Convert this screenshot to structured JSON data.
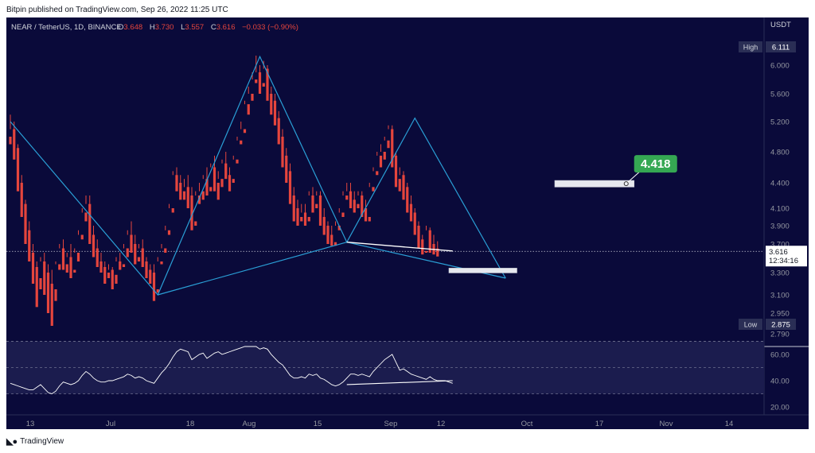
{
  "header": {
    "published": "Bitpin published on TradingView.com, Sep 26, 2022 11:25 UTC"
  },
  "symbol_bar": {
    "title": "NEAR / TetherUS, 1D, BINANCE",
    "o_label": "O",
    "o_value": "3.648",
    "h_label": "H",
    "h_value": "3.730",
    "l_label": "L",
    "l_value": "3.557",
    "c_label": "C",
    "c_value": "3.616",
    "change": "−0.033 (−0.90%)"
  },
  "footer": {
    "logo_text": "TradingView"
  },
  "colors": {
    "background": "#0a0a3a",
    "up": "#26c281",
    "down": "#e5453d",
    "pattern": "#2a9fd6",
    "white": "#ffffff",
    "label_green": "#35a853"
  },
  "chart_data": [
    {
      "type": "candlestick",
      "currency": "USDT",
      "y_ticks": [
        "6.000",
        "5.600",
        "5.200",
        "4.800",
        "4.400",
        "4.100",
        "3.900",
        "3.700",
        "3.500",
        "3.300",
        "3.100",
        "2.950",
        "2.790"
      ],
      "ylim": [
        2.79,
        6.111
      ],
      "x_ticks": [
        "13",
        "Jul",
        "18",
        "Aug",
        "15",
        "Sep",
        "12",
        "Oct",
        "17",
        "Nov",
        "14"
      ],
      "high_label": "High",
      "high_value": "6.111",
      "low_label": "Low",
      "low_value": "2.875",
      "last_price": "3.616",
      "countdown": "12:34:16",
      "target_label": "4.418",
      "candles": [
        [
          5.0,
          5.3,
          5.1,
          4.9
        ],
        [
          5.1,
          5.2,
          4.85,
          4.7
        ],
        [
          4.85,
          4.9,
          4.4,
          4.3
        ],
        [
          4.4,
          4.5,
          4.15,
          4.0
        ],
        [
          4.15,
          4.2,
          3.85,
          3.7
        ],
        [
          3.85,
          3.95,
          3.6,
          3.5
        ],
        [
          3.6,
          3.7,
          3.4,
          3.2
        ],
        [
          3.4,
          3.5,
          3.25,
          3.0
        ],
        [
          3.25,
          3.55,
          3.5,
          3.15
        ],
        [
          3.5,
          3.6,
          3.3,
          3.1
        ],
        [
          3.3,
          3.45,
          3.2,
          2.95
        ],
        [
          3.2,
          3.35,
          3.15,
          2.875
        ],
        [
          3.15,
          3.5,
          3.45,
          3.05
        ],
        [
          3.45,
          3.7,
          3.65,
          3.35
        ],
        [
          3.65,
          3.75,
          3.45,
          3.35
        ],
        [
          3.45,
          3.6,
          3.55,
          3.3
        ],
        [
          3.55,
          3.7,
          3.35,
          3.25
        ],
        [
          3.35,
          3.65,
          3.6,
          3.3
        ],
        [
          3.6,
          3.85,
          3.8,
          3.5
        ],
        [
          3.8,
          4.1,
          4.05,
          3.75
        ],
        [
          4.05,
          4.25,
          4.15,
          3.95
        ],
        [
          4.15,
          4.25,
          3.8,
          3.7
        ],
        [
          3.8,
          3.9,
          3.65,
          3.55
        ],
        [
          3.65,
          3.75,
          3.5,
          3.4
        ],
        [
          3.5,
          3.6,
          3.4,
          3.3
        ],
        [
          3.4,
          3.5,
          3.3,
          3.2
        ],
        [
          3.3,
          3.45,
          3.35,
          3.25
        ],
        [
          3.35,
          3.4,
          3.28,
          3.15
        ],
        [
          3.28,
          3.55,
          3.5,
          3.2
        ],
        [
          3.5,
          3.6,
          3.45,
          3.35
        ],
        [
          3.45,
          3.7,
          3.65,
          3.4
        ],
        [
          3.65,
          3.85,
          3.8,
          3.55
        ],
        [
          3.8,
          3.95,
          3.7,
          3.6
        ],
        [
          3.7,
          3.8,
          3.55,
          3.45
        ],
        [
          3.55,
          3.7,
          3.65,
          3.5
        ],
        [
          3.65,
          3.75,
          3.5,
          3.4
        ],
        [
          3.5,
          3.55,
          3.35,
          3.25
        ],
        [
          3.35,
          3.45,
          3.3,
          3.2
        ],
        [
          3.3,
          3.45,
          3.15,
          3.05
        ],
        [
          3.15,
          3.55,
          3.5,
          3.12
        ],
        [
          3.5,
          3.7,
          3.65,
          3.45
        ],
        [
          3.65,
          3.9,
          3.85,
          3.6
        ],
        [
          3.85,
          4.15,
          4.1,
          3.8
        ],
        [
          4.1,
          4.55,
          4.5,
          4.05
        ],
        [
          4.5,
          4.6,
          4.4,
          4.3
        ],
        [
          4.4,
          4.5,
          4.3,
          4.2
        ],
        [
          4.3,
          4.45,
          4.35,
          4.2
        ],
        [
          4.35,
          4.5,
          4.25,
          4.1
        ],
        [
          4.25,
          4.35,
          3.95,
          3.85
        ],
        [
          3.95,
          4.3,
          4.25,
          3.9
        ],
        [
          4.25,
          4.4,
          4.3,
          4.15
        ],
        [
          4.3,
          4.5,
          4.45,
          4.2
        ],
        [
          4.45,
          4.6,
          4.35,
          4.25
        ],
        [
          4.35,
          4.65,
          4.6,
          4.3
        ],
        [
          4.6,
          4.75,
          4.4,
          4.3
        ],
        [
          4.4,
          4.55,
          4.45,
          4.2
        ],
        [
          4.45,
          4.7,
          4.65,
          4.35
        ],
        [
          4.65,
          4.8,
          4.5,
          4.45
        ],
        [
          4.5,
          4.6,
          4.45,
          4.3
        ],
        [
          4.45,
          4.75,
          4.7,
          4.4
        ],
        [
          4.7,
          5.0,
          4.95,
          4.65
        ],
        [
          4.95,
          5.2,
          5.1,
          4.9
        ],
        [
          5.1,
          5.5,
          5.45,
          5.05
        ],
        [
          5.45,
          5.7,
          5.6,
          5.3
        ],
        [
          5.6,
          5.9,
          5.8,
          5.5
        ],
        [
          5.8,
          6.111,
          5.9,
          5.75
        ],
        [
          5.9,
          6.0,
          5.75,
          5.6
        ],
        [
          5.75,
          6.05,
          5.95,
          5.7
        ],
        [
          5.95,
          6.0,
          5.6,
          5.5
        ],
        [
          5.6,
          5.7,
          5.5,
          5.3
        ],
        [
          5.5,
          5.6,
          5.25,
          5.15
        ],
        [
          5.25,
          5.35,
          5.0,
          4.9
        ],
        [
          5.0,
          5.1,
          4.75,
          4.6
        ],
        [
          4.75,
          4.85,
          4.55,
          4.4
        ],
        [
          4.55,
          4.65,
          4.25,
          4.15
        ],
        [
          4.25,
          4.35,
          4.1,
          3.95
        ],
        [
          4.1,
          4.2,
          4.0,
          3.9
        ],
        [
          4.0,
          4.15,
          4.05,
          3.95
        ],
        [
          4.05,
          4.15,
          4.0,
          3.9
        ],
        [
          4.0,
          4.3,
          4.25,
          3.95
        ],
        [
          4.25,
          4.35,
          4.15,
          4.05
        ],
        [
          4.15,
          4.3,
          4.25,
          4.1
        ],
        [
          4.25,
          4.3,
          4.0,
          3.9
        ],
        [
          4.0,
          4.1,
          3.9,
          3.8
        ],
        [
          3.9,
          3.95,
          3.8,
          3.7
        ],
        [
          3.8,
          3.9,
          3.72,
          3.68
        ],
        [
          3.72,
          3.95,
          3.9,
          3.68
        ],
        [
          3.9,
          4.1,
          4.05,
          3.85
        ],
        [
          4.05,
          4.3,
          4.25,
          4.0
        ],
        [
          4.25,
          4.4,
          4.3,
          4.2
        ],
        [
          4.3,
          4.4,
          4.2,
          4.1
        ],
        [
          4.2,
          4.3,
          4.15,
          4.05
        ],
        [
          4.15,
          4.3,
          4.25,
          4.1
        ],
        [
          4.25,
          4.3,
          4.1,
          4.0
        ],
        [
          4.1,
          4.2,
          4.0,
          3.95
        ],
        [
          4.0,
          4.4,
          4.35,
          3.95
        ],
        [
          4.35,
          4.6,
          4.55,
          4.3
        ],
        [
          4.55,
          4.8,
          4.75,
          4.5
        ],
        [
          4.75,
          4.9,
          4.8,
          4.6
        ],
        [
          4.8,
          5.0,
          4.95,
          4.7
        ],
        [
          4.95,
          5.15,
          5.1,
          4.85
        ],
        [
          5.1,
          5.15,
          4.75,
          4.6
        ],
        [
          4.75,
          4.8,
          4.45,
          4.35
        ],
        [
          4.45,
          4.6,
          4.5,
          4.3
        ],
        [
          4.5,
          4.55,
          4.35,
          4.2
        ],
        [
          4.35,
          4.4,
          4.15,
          4.05
        ],
        [
          4.15,
          4.25,
          4.05,
          3.95
        ],
        [
          4.05,
          4.1,
          3.9,
          3.8
        ],
        [
          3.9,
          3.95,
          3.75,
          3.65
        ],
        [
          3.75,
          3.8,
          3.62,
          3.58
        ],
        [
          3.62,
          3.9,
          3.85,
          3.6
        ],
        [
          3.85,
          3.88,
          3.7,
          3.6
        ],
        [
          3.7,
          3.8,
          3.65,
          3.58
        ],
        [
          3.648,
          3.73,
          3.616,
          3.557
        ]
      ],
      "pattern_points": [
        {
          "index": 0,
          "price": 5.2
        },
        {
          "index": 39,
          "price": 3.1
        },
        {
          "index": 66,
          "price": 6.1
        },
        {
          "index": 89,
          "price": 3.72
        },
        {
          "index": 107,
          "price": 5.25
        },
        {
          "index": 131,
          "price": 3.25
        }
      ],
      "pattern_diagonal": [
        {
          "index": 39,
          "price": 3.1
        },
        {
          "index": 89,
          "price": 3.72
        }
      ],
      "pattern_bd_line": [
        {
          "index": 89,
          "price": 3.72
        },
        {
          "index": 131,
          "price": 3.25
        }
      ],
      "divergence_price_line": [
        {
          "index": 89,
          "price": 3.72
        },
        {
          "index": 117,
          "price": 3.62
        }
      ],
      "target_zone": {
        "index_from": 144,
        "index_to": 165,
        "price_from": 4.35,
        "price_to": 4.43
      },
      "prz_zone": {
        "index_from": 116,
        "index_to": 134,
        "price_from": 3.32,
        "price_to": 3.38
      }
    },
    {
      "type": "line",
      "indicator": "RSI",
      "y_ticks": [
        "60.00",
        "40.00",
        "20.00"
      ],
      "ylim": [
        14,
        66
      ],
      "levels": [
        70,
        50,
        30
      ],
      "values": [
        38,
        37,
        36,
        35,
        34,
        33,
        33,
        35,
        37,
        34,
        31,
        30,
        32,
        36,
        39,
        38,
        37,
        38,
        40,
        44,
        47,
        45,
        42,
        40,
        39,
        39,
        40,
        40,
        41,
        42,
        43,
        45,
        44,
        42,
        43,
        42,
        40,
        39,
        38,
        42,
        46,
        49,
        53,
        58,
        62,
        64,
        63,
        62,
        56,
        58,
        60,
        61,
        57,
        59,
        61,
        62,
        60,
        61,
        62,
        63,
        64,
        65,
        66,
        66,
        66,
        66,
        64,
        65,
        64,
        60,
        57,
        54,
        52,
        48,
        44,
        42,
        42,
        43,
        42,
        45,
        44,
        45,
        42,
        41,
        39,
        37,
        36,
        37,
        39,
        42,
        45,
        45,
        44,
        45,
        44,
        43,
        47,
        50,
        53,
        56,
        58,
        60,
        54,
        48,
        49,
        47,
        45,
        44,
        43,
        42,
        41,
        43,
        41,
        40,
        40,
        40,
        39,
        38
      ],
      "divergence_line": [
        {
          "index": 89,
          "value": 37
        },
        {
          "index": 117,
          "value": 40
        }
      ]
    }
  ]
}
